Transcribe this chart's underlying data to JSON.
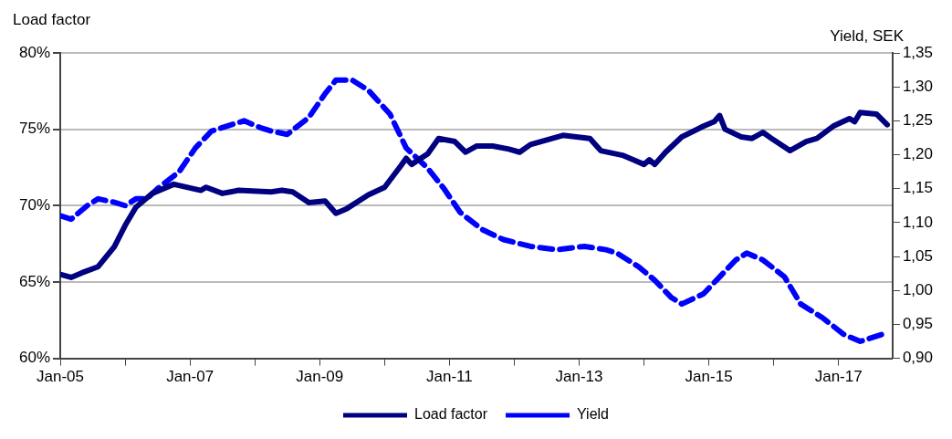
{
  "chart_data": {
    "type": "line",
    "ylabel": "Load factor",
    "y2label": "Yield, SEK",
    "xlim": [
      "2005-01",
      "2017-11"
    ],
    "xticks": [
      {
        "value": "2005-01",
        "label": "Jan-05"
      },
      {
        "value": "2006-01",
        "label": null
      },
      {
        "value": "2007-01",
        "label": "Jan-07"
      },
      {
        "value": "2008-01",
        "label": null
      },
      {
        "value": "2009-01",
        "label": "Jan-09"
      },
      {
        "value": "2010-01",
        "label": null
      },
      {
        "value": "2011-01",
        "label": "Jan-11"
      },
      {
        "value": "2012-01",
        "label": null
      },
      {
        "value": "2013-01",
        "label": "Jan-13"
      },
      {
        "value": "2014-01",
        "label": null
      },
      {
        "value": "2015-01",
        "label": "Jan-15"
      },
      {
        "value": "2016-01",
        "label": null
      },
      {
        "value": "2017-01",
        "label": "Jan-17"
      }
    ],
    "ylim": [
      60,
      80
    ],
    "yticks": [
      {
        "value": 60,
        "label": "60%"
      },
      {
        "value": 65,
        "label": "65%"
      },
      {
        "value": 70,
        "label": "70%"
      },
      {
        "value": 75,
        "label": "75%"
      },
      {
        "value": 80,
        "label": "80%"
      }
    ],
    "y2lim": [
      0.9,
      1.35
    ],
    "y2ticks": [
      {
        "value": 0.9,
        "label": "0,90"
      },
      {
        "value": 0.95,
        "label": "0,95"
      },
      {
        "value": 1.0,
        "label": "1,00"
      },
      {
        "value": 1.05,
        "label": "1,05"
      },
      {
        "value": 1.1,
        "label": "1,10"
      },
      {
        "value": 1.15,
        "label": "1,15"
      },
      {
        "value": 1.2,
        "label": "1,20"
      },
      {
        "value": 1.25,
        "label": "1,25"
      },
      {
        "value": 1.3,
        "label": "1,30"
      },
      {
        "value": 1.35,
        "label": "1,35"
      }
    ],
    "grid": "y",
    "legend": "bottom",
    "marker": "none",
    "series": [
      {
        "name": "Load factor",
        "color": "#000080",
        "line_style": "solid",
        "x": [
          "2005-01",
          "2005-03",
          "2005-05",
          "2005-08",
          "2005-11",
          "2006-01",
          "2006-03",
          "2006-06",
          "2006-10",
          "2007-03",
          "2007-04",
          "2007-07",
          "2007-10",
          "2008-04",
          "2008-06",
          "2008-08",
          "2008-11",
          "2009-02",
          "2009-04",
          "2009-06",
          "2009-10",
          "2010-01",
          "2010-04",
          "2010-05",
          "2010-06",
          "2010-09",
          "2010-11",
          "2011-02",
          "2011-04",
          "2011-06",
          "2011-09",
          "2011-12",
          "2012-02",
          "2012-04",
          "2012-07",
          "2012-10",
          "2013-03",
          "2013-05",
          "2013-09",
          "2013-11",
          "2014-01",
          "2014-02",
          "2014-03",
          "2014-05",
          "2014-08",
          "2014-12",
          "2015-02",
          "2015-03",
          "2015-04",
          "2015-07",
          "2015-09",
          "2015-11",
          "2016-01",
          "2016-04",
          "2016-07",
          "2016-09",
          "2016-12",
          "2017-03",
          "2017-04",
          "2017-05",
          "2017-08",
          "2017-10"
        ],
        "values": [
          65.5,
          65.3,
          65.6,
          66.0,
          67.3,
          68.7,
          69.9,
          70.8,
          71.4,
          71.0,
          71.2,
          70.8,
          71.0,
          70.9,
          71.0,
          70.9,
          70.2,
          70.3,
          69.5,
          69.8,
          70.7,
          71.2,
          72.6,
          73.1,
          72.7,
          73.4,
          74.4,
          74.2,
          73.5,
          73.9,
          73.9,
          73.7,
          73.5,
          74.0,
          74.3,
          74.6,
          74.4,
          73.6,
          73.3,
          73.0,
          72.7,
          73.0,
          72.7,
          73.5,
          74.5,
          75.2,
          75.5,
          75.9,
          75.0,
          74.5,
          74.4,
          74.8,
          74.3,
          73.6,
          74.2,
          74.4,
          75.2,
          75.7,
          75.5,
          76.1,
          76.0,
          75.3
        ]
      },
      {
        "name": "Yield",
        "color": "#0000ff",
        "line_style": "dashed",
        "axis": "y2",
        "x": [
          "2005-01",
          "2005-03",
          "2005-06",
          "2005-08",
          "2005-11",
          "2006-01",
          "2006-03",
          "2006-05",
          "2006-07",
          "2006-11",
          "2007-02",
          "2007-05",
          "2007-09",
          "2007-11",
          "2008-02",
          "2008-04",
          "2008-07",
          "2008-11",
          "2009-02",
          "2009-04",
          "2009-07",
          "2009-10",
          "2010-02",
          "2010-05",
          "2010-09",
          "2010-12",
          "2011-03",
          "2011-07",
          "2011-11",
          "2012-04",
          "2012-09",
          "2013-02",
          "2013-06",
          "2013-08",
          "2013-12",
          "2014-03",
          "2014-06",
          "2014-08",
          "2014-12",
          "2015-03",
          "2015-06",
          "2015-08",
          "2015-11",
          "2016-03",
          "2016-06",
          "2016-10",
          "2017-02",
          "2017-05",
          "2017-09"
        ],
        "values": [
          1.11,
          1.105,
          1.125,
          1.135,
          1.13,
          1.125,
          1.135,
          1.135,
          1.15,
          1.175,
          1.21,
          1.235,
          1.245,
          1.25,
          1.24,
          1.235,
          1.23,
          1.255,
          1.29,
          1.31,
          1.31,
          1.295,
          1.26,
          1.21,
          1.18,
          1.15,
          1.115,
          1.09,
          1.075,
          1.065,
          1.06,
          1.065,
          1.06,
          1.055,
          1.035,
          1.015,
          0.99,
          0.98,
          0.995,
          1.02,
          1.045,
          1.055,
          1.045,
          1.02,
          0.98,
          0.96,
          0.935,
          0.925,
          0.935
        ]
      }
    ]
  }
}
